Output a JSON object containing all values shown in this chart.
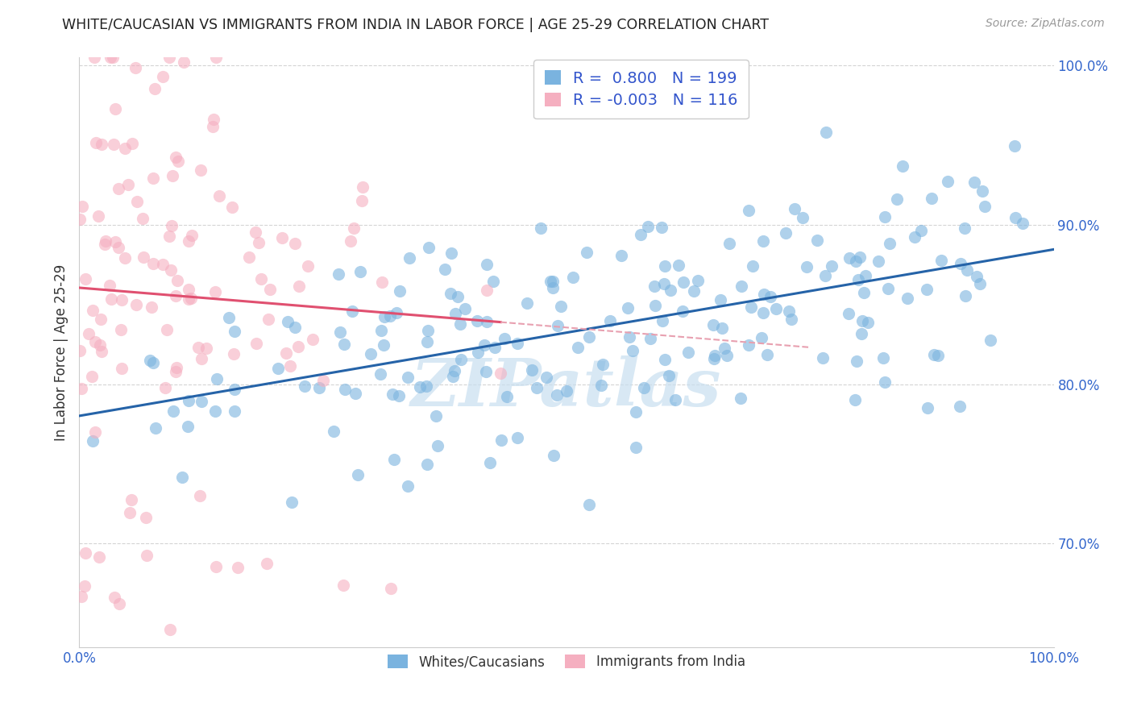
{
  "title": "WHITE/CAUCASIAN VS IMMIGRANTS FROM INDIA IN LABOR FORCE | AGE 25-29 CORRELATION CHART",
  "source": "Source: ZipAtlas.com",
  "ylabel": "In Labor Force | Age 25-29",
  "xlim": [
    0.0,
    1.0
  ],
  "ylim": [
    0.635,
    1.005
  ],
  "yticks": [
    0.7,
    0.8,
    0.9,
    1.0
  ],
  "ytick_labels": [
    "70.0%",
    "80.0%",
    "90.0%",
    "100.0%"
  ],
  "xticks": [
    0.0,
    1.0
  ],
  "xtick_labels": [
    "0.0%",
    "100.0%"
  ],
  "blue_R": "0.800",
  "blue_N": 199,
  "pink_R": "-0.003",
  "pink_N": 116,
  "blue_color": "#7ab3df",
  "pink_color": "#f5afc0",
  "blue_line_color": "#2563a8",
  "pink_line_color": "#e05070",
  "pink_line_dashed_color": "#e8a0b0",
  "watermark_text": "ZIPatlas",
  "watermark_color": "#c8dff0",
  "legend_label_blue": "Whites/Caucasians",
  "legend_label_pink": "Immigrants from India",
  "background_color": "#ffffff",
  "grid_color": "#d0d0d0",
  "title_color": "#222222",
  "legend_text_color": "#3355cc",
  "blue_seed": 7,
  "pink_seed": 3,
  "dot_size": 120,
  "dot_alpha": 0.6
}
